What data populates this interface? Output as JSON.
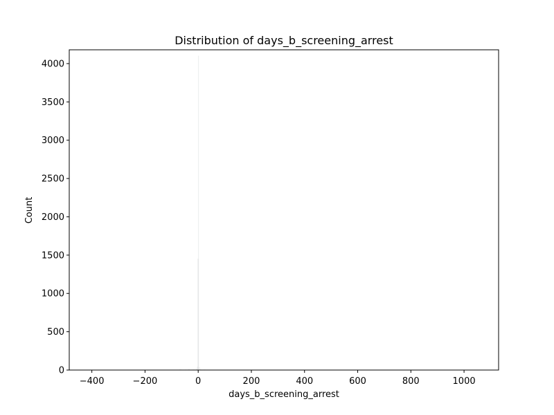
{
  "chart_data": {
    "type": "bar",
    "title": "Distribution of days_b_screening_arrest",
    "xlabel": "days_b_screening_arrest",
    "ylabel": "Count",
    "xlim": [
      -485,
      1130
    ],
    "ylim": [
      0,
      4180
    ],
    "x_ticks": [
      -400,
      -200,
      0,
      200,
      400,
      600,
      800,
      1000
    ],
    "x_tick_labels": [
      "−400",
      "−200",
      "0",
      "200",
      "400",
      "600",
      "800",
      "1000"
    ],
    "y_ticks": [
      0,
      500,
      1000,
      1500,
      2000,
      2500,
      3000,
      3500,
      4000
    ],
    "y_tick_labels": [
      "0",
      "500",
      "1000",
      "1500",
      "2000",
      "2500",
      "3000",
      "3500",
      "4000"
    ],
    "grid": false,
    "bar_color": "#1f77b4",
    "bins": [
      {
        "x0": -70,
        "x1": -64,
        "count": 6
      },
      {
        "x0": -50,
        "x1": -44,
        "count": 4
      },
      {
        "x0": -38,
        "x1": -32,
        "count": 7
      },
      {
        "x0": -20,
        "x1": -14,
        "count": 5
      },
      {
        "x0": -8,
        "x1": -4,
        "count": 12
      },
      {
        "x0": -4,
        "x1": -2,
        "count": 40
      },
      {
        "x0": -2,
        "x1": 0,
        "count": 1450
      },
      {
        "x0": 0,
        "x1": 2,
        "count": 4100
      },
      {
        "x0": 2,
        "x1": 6,
        "count": 30
      },
      {
        "x0": 6,
        "x1": 10,
        "count": 8
      },
      {
        "x0": 20,
        "x1": 26,
        "count": 4
      }
    ]
  }
}
